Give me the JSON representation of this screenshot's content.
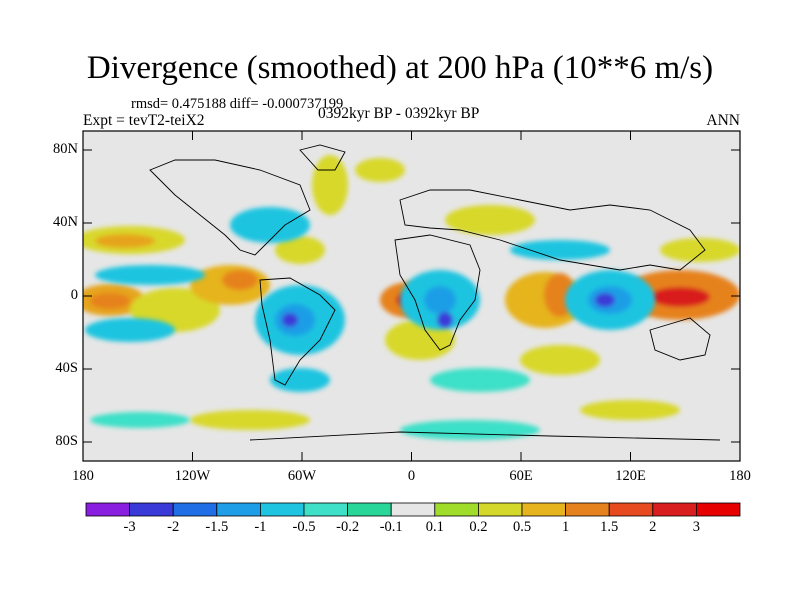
{
  "title": "Divergence (smoothed) at 200 hPa (10**6 m/s)",
  "subtitle": "rmsd= 0.475188 diff= -0.000737199",
  "left_label": "Expt = tevT2-teiX2",
  "center_label": "0392kyr BP - 0392kyr BP",
  "right_label": "ANN",
  "map": {
    "lat_ticks": [
      "80N",
      "40N",
      "0",
      "40S",
      "80S"
    ],
    "lon_ticks": [
      "180",
      "120W",
      "60W",
      "0",
      "60E",
      "120E",
      "180"
    ],
    "background_color": "#e6e6e6"
  },
  "colorbar": {
    "labels": [
      "-3",
      "-2",
      "-1.5",
      "-1",
      "-0.5",
      "-0.2",
      "-0.1",
      "0.1",
      "0.2",
      "0.5",
      "1",
      "1.5",
      "2",
      "3"
    ],
    "colors": [
      "#8a1ee0",
      "#3a3ad8",
      "#1f6ee6",
      "#1e9ee6",
      "#1ec4e0",
      "#3ee0c8",
      "#28d69a",
      "#e6e6e6",
      "#a0dc2a",
      "#d4d82a",
      "#e6b41e",
      "#e6821e",
      "#e64a1e",
      "#d81e1e",
      "#e60000"
    ]
  }
}
